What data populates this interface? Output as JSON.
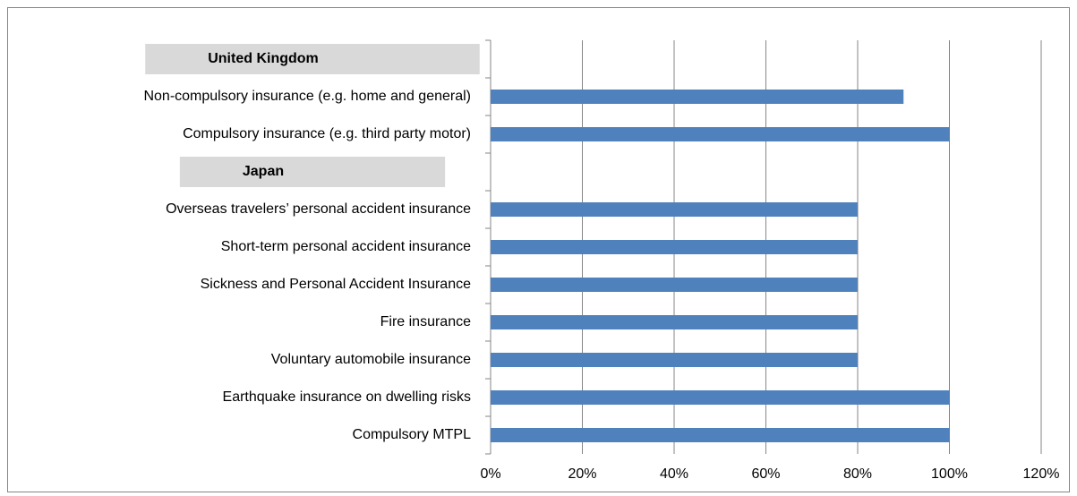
{
  "chart_data": {
    "type": "bar",
    "orientation": "horizontal",
    "categories": [
      "United Kingdom",
      "Non-compulsory insurance (e.g. home and general)",
      "Compulsory insurance (e.g. third party motor)",
      "Japan",
      "Overseas travelers’ personal accident insurance",
      "Short-term personal accident insurance",
      "Sickness and Personal Accident Insurance",
      "Fire insurance",
      "Voluntary automobile insurance",
      "Earthquake insurance on dwelling risks",
      "Compulsory MTPL"
    ],
    "values": [
      null,
      90,
      100,
      null,
      80,
      80,
      80,
      80,
      80,
      100,
      100
    ],
    "color": "#4f81bd",
    "xlim": [
      0,
      120
    ],
    "xticks": [
      {
        "value": 0,
        "label": "0%"
      },
      {
        "value": 20,
        "label": "20%"
      },
      {
        "value": 40,
        "label": "40%"
      },
      {
        "value": 60,
        "label": "60%"
      },
      {
        "value": 80,
        "label": "80%"
      },
      {
        "value": 100,
        "label": "100%"
      },
      {
        "value": 120,
        "label": "120%"
      }
    ],
    "grid": true
  }
}
